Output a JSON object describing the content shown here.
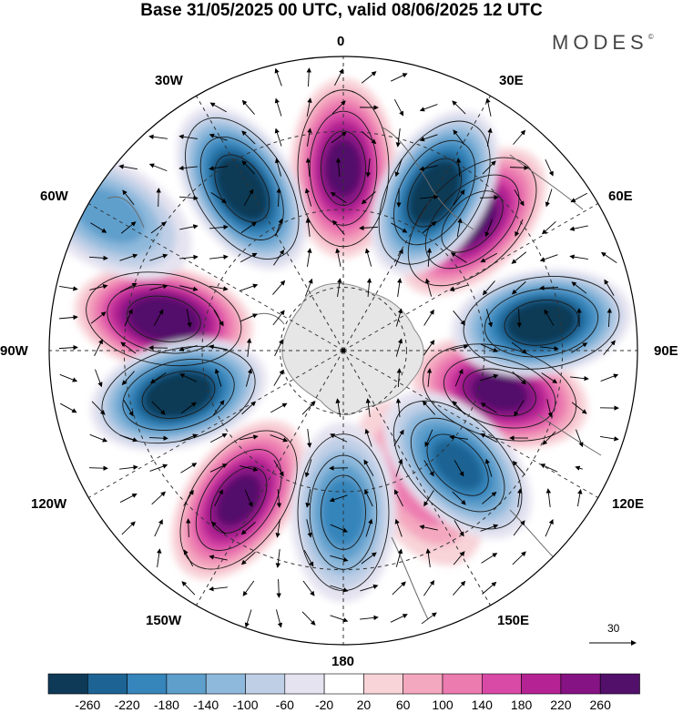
{
  "title": "Base 31/05/2025 00 UTC, valid 08/06/2025 12 UTC",
  "brand": "MODES",
  "brand_mark": "©",
  "longitude_labels": {
    "lon_0": "0",
    "lon_30e": "30E",
    "lon_60e": "60E",
    "lon_90e": "90E",
    "lon_120e": "120E",
    "lon_150e": "150E",
    "lon_180": "180",
    "lon_150w": "150W",
    "lon_120w": "120W",
    "lon_90w": "90W",
    "lon_60w": "60W",
    "lon_30w": "30W"
  },
  "vector_scale_label": "30",
  "colorbar": {
    "ticks": [
      "-260",
      "-220",
      "-180",
      "-140",
      "-100",
      "-60",
      "-20",
      "20",
      "60",
      "100",
      "140",
      "180",
      "220",
      "260"
    ],
    "colors": [
      "#0f3a57",
      "#1d6494",
      "#3685bb",
      "#5e9fcc",
      "#8fb9dc",
      "#bfcfe6",
      "#e5e3f0",
      "#ffffff",
      "#f8d3d8",
      "#f4a8bf",
      "#ec7bb0",
      "#d94aa6",
      "#b52293",
      "#861384",
      "#52106b"
    ]
  },
  "anomaly_centers": {
    "positive": [
      {
        "lon": 0,
        "colat": 0.62,
        "level": 220
      },
      {
        "lon": 45,
        "colat": 0.62,
        "level": 220
      },
      {
        "lon": 105,
        "colat": 0.55,
        "level": 220
      },
      {
        "lon": 150,
        "colat": 0.52,
        "level": 60
      },
      {
        "lon": -145,
        "colat": 0.62,
        "level": 220
      },
      {
        "lon": -80,
        "colat": 0.62,
        "level": 260
      }
    ],
    "negative": [
      {
        "lon": 30,
        "colat": 0.62,
        "level": -260
      },
      {
        "lon": 82,
        "colat": 0.68,
        "level": -260
      },
      {
        "lon": 135,
        "colat": 0.55,
        "level": -180
      },
      {
        "lon": 180,
        "colat": 0.55,
        "level": -140
      },
      {
        "lon": -105,
        "colat": 0.58,
        "level": -260
      },
      {
        "lon": -32,
        "colat": 0.65,
        "level": -260
      },
      {
        "lon": -60,
        "colat": 0.92,
        "level": -100
      }
    ]
  }
}
